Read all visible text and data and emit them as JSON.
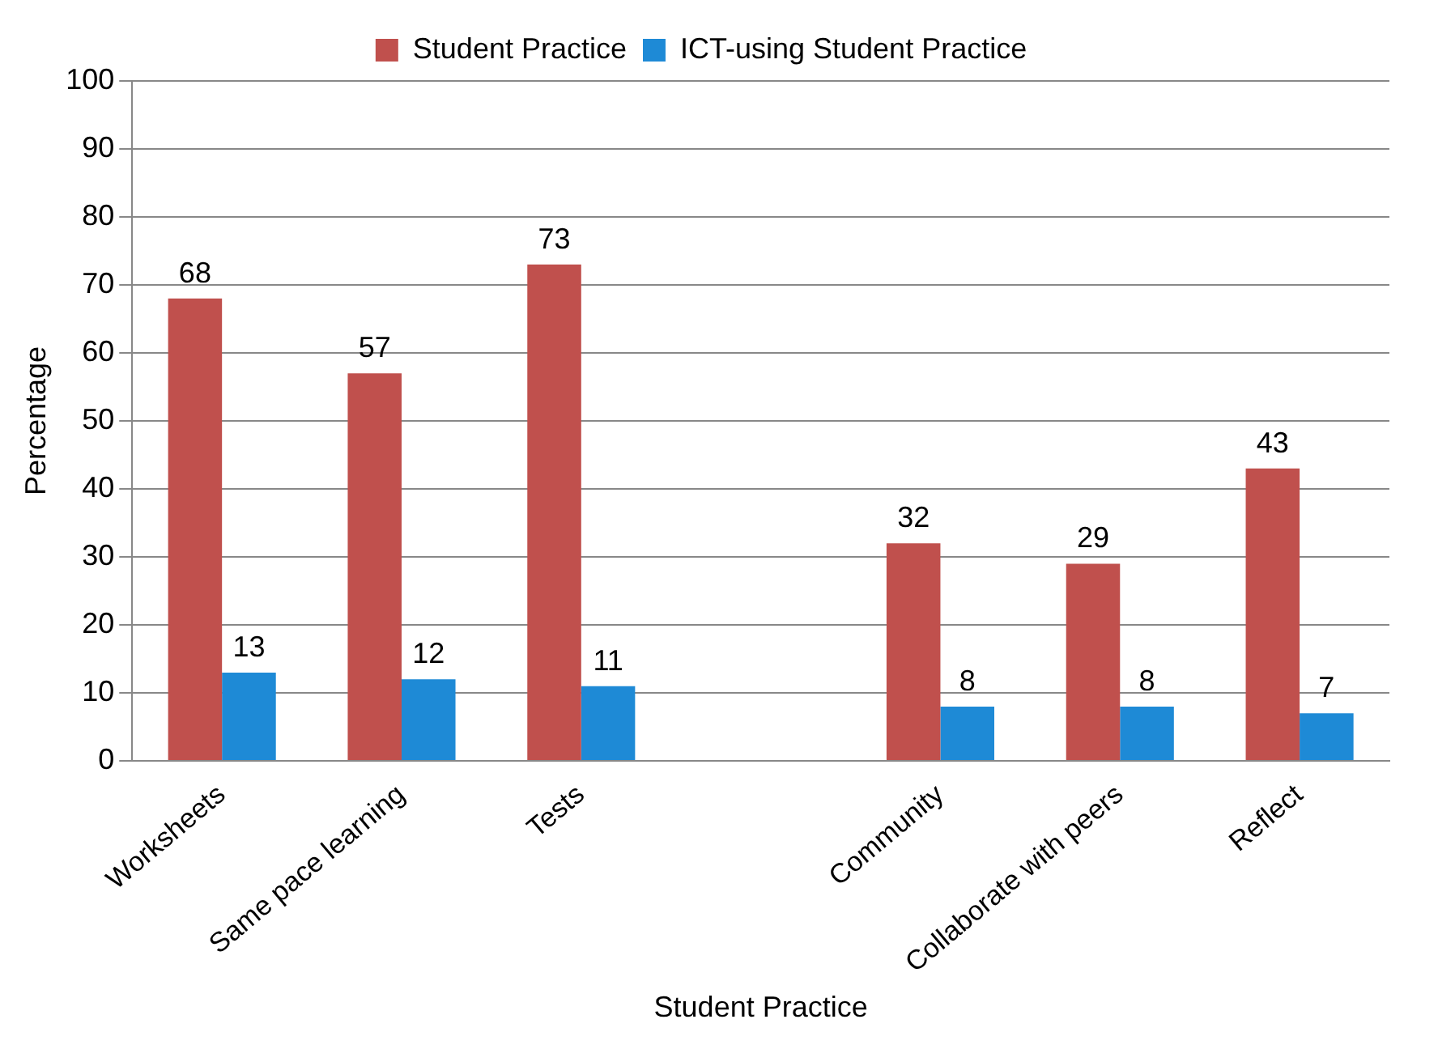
{
  "chart_data": {
    "type": "bar",
    "xlabel": "Student Practice",
    "ylabel": "Percentage",
    "categories": [
      "Worksheets",
      "Same pace learning",
      "Tests",
      null,
      "Community",
      "Collaborate with peers",
      "Reflect"
    ],
    "series": [
      {
        "name": "Student Practice",
        "color": "#c0504d",
        "values": [
          68,
          57,
          73,
          null,
          32,
          29,
          43
        ]
      },
      {
        "name": "ICT-using Student Practice",
        "color": "#1e8ad6",
        "values": [
          13,
          12,
          11,
          null,
          8,
          8,
          7
        ]
      }
    ],
    "ylim": [
      0,
      100
    ],
    "yticks": [
      0,
      10,
      20,
      30,
      40,
      50,
      60,
      70,
      80,
      90,
      100
    ],
    "grid": "y",
    "legend": "top",
    "data_labels": true
  }
}
